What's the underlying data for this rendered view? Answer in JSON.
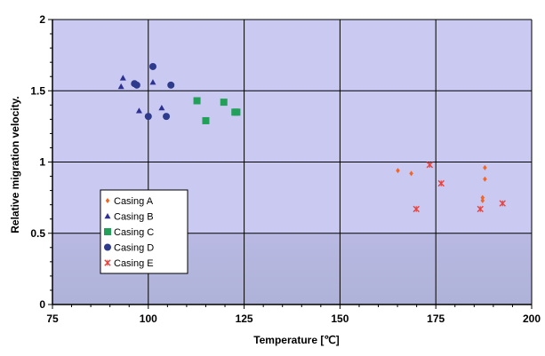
{
  "chart_data": {
    "type": "scatter",
    "xlabel": "Temperature [℃]",
    "ylabel": "Relative migration velocity.",
    "xlim": [
      75,
      200
    ],
    "ylim": [
      0,
      2
    ],
    "x_ticks": [
      "75",
      "100",
      "125",
      "150",
      "175",
      "200"
    ],
    "y_ticks": [
      "0",
      "0.5",
      "1",
      "1.5",
      "2"
    ],
    "grid": true,
    "legend_position": "lower-left",
    "series": [
      {
        "name": "Casing A",
        "marker": "diamond",
        "color": "#F26522",
        "points": [
          [
            165.1,
            0.94
          ],
          [
            168.6,
            0.92
          ],
          [
            187.8,
            0.96
          ],
          [
            187.8,
            0.88
          ],
          [
            187.2,
            0.75
          ],
          [
            187.2,
            0.73
          ]
        ]
      },
      {
        "name": "Casing B",
        "marker": "triangle",
        "color": "#2E3192",
        "points": [
          [
            93.4,
            1.59
          ],
          [
            92.9,
            1.53
          ],
          [
            97.6,
            1.36
          ],
          [
            103.5,
            1.38
          ],
          [
            101.2,
            1.56
          ]
        ]
      },
      {
        "name": "Casing C",
        "marker": "square",
        "color": "#22A05A",
        "points": [
          [
            112.7,
            1.43
          ],
          [
            119.7,
            1.42
          ],
          [
            115.0,
            1.29
          ],
          [
            122.6,
            1.35
          ],
          [
            123.1,
            1.35
          ]
        ]
      },
      {
        "name": "Casing D",
        "marker": "circle",
        "color": "#2E3A8C",
        "points": [
          [
            101.2,
            1.67
          ],
          [
            96.4,
            1.55
          ],
          [
            97.0,
            1.54
          ],
          [
            105.9,
            1.54
          ],
          [
            100.0,
            1.32
          ],
          [
            104.7,
            1.32
          ]
        ]
      },
      {
        "name": "Casing E",
        "marker": "x-star",
        "color": "#E8423C",
        "points": [
          [
            173.4,
            0.98
          ],
          [
            176.4,
            0.85
          ],
          [
            169.9,
            0.67
          ],
          [
            186.6,
            0.67
          ],
          [
            192.4,
            0.71
          ]
        ]
      }
    ],
    "colors": {
      "plot_background": "#C9C9F2",
      "gridline": "#000000"
    }
  }
}
